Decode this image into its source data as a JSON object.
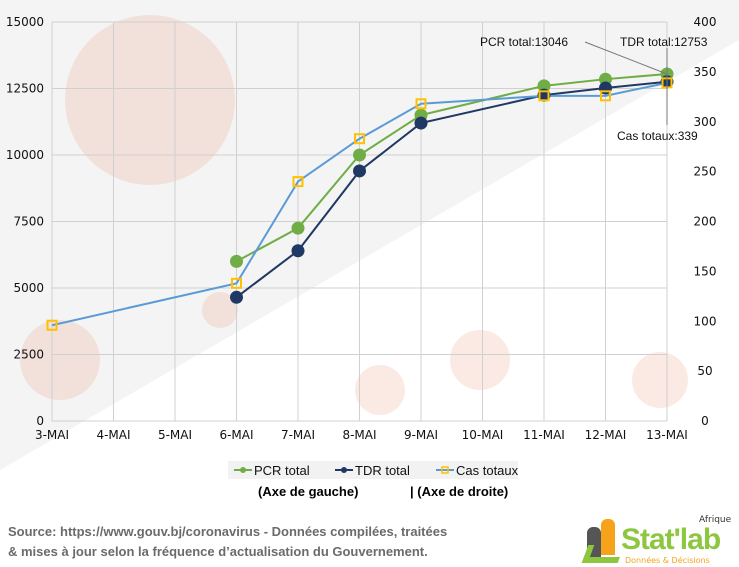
{
  "chart_data": {
    "type": "line",
    "categories": [
      "3-MAI",
      "4-MAI",
      "5-MAI",
      "6-MAI",
      "7-MAI",
      "8-MAI",
      "9-MAI",
      "10-MAI",
      "11-MAI",
      "12-MAI",
      "13-MAI"
    ],
    "y_left": {
      "range": [
        0,
        15000
      ],
      "ticks": [
        0,
        2500,
        5000,
        7500,
        10000,
        12500,
        15000
      ]
    },
    "y_right": {
      "range": [
        0,
        400
      ],
      "ticks": [
        0,
        50,
        100,
        150,
        200,
        250,
        300,
        350,
        400
      ]
    },
    "grid": true,
    "legend_position": "bottom",
    "series": [
      {
        "name": "PCR total",
        "axis": "left",
        "color": "#70ad47",
        "marker": "circle",
        "values": [
          null,
          null,
          null,
          6000,
          7250,
          10000,
          11500,
          null,
          12600,
          12850,
          13046
        ]
      },
      {
        "name": "TDR total",
        "axis": "left",
        "color": "#203864",
        "marker": "circle",
        "values": [
          null,
          null,
          null,
          4650,
          6400,
          9400,
          11200,
          null,
          12250,
          12520,
          12753
        ]
      },
      {
        "name": "Cas totaux",
        "axis": "right",
        "color": "#5b9bd5",
        "marker": "square",
        "marker_color": "#ffc000",
        "values": [
          96,
          null,
          null,
          138,
          240,
          283,
          318,
          null,
          326,
          326,
          339
        ]
      }
    ],
    "annotations": [
      "PCR total:13046",
      "TDR total:12753",
      "Cas totaux:339"
    ],
    "axis_notes": {
      "left": "(Axe de gauche)",
      "right": "| (Axe de droite)"
    }
  },
  "source": [
    "Source: https://www.gouv.bj/coronavirus - Données compilées, traitées",
    "& mises à jour selon la fréquence d’actualisation du Gouvernement."
  ],
  "logo": {
    "name": "Stat'lab",
    "top": "Afrique",
    "bottom": "Données & Décisions"
  }
}
